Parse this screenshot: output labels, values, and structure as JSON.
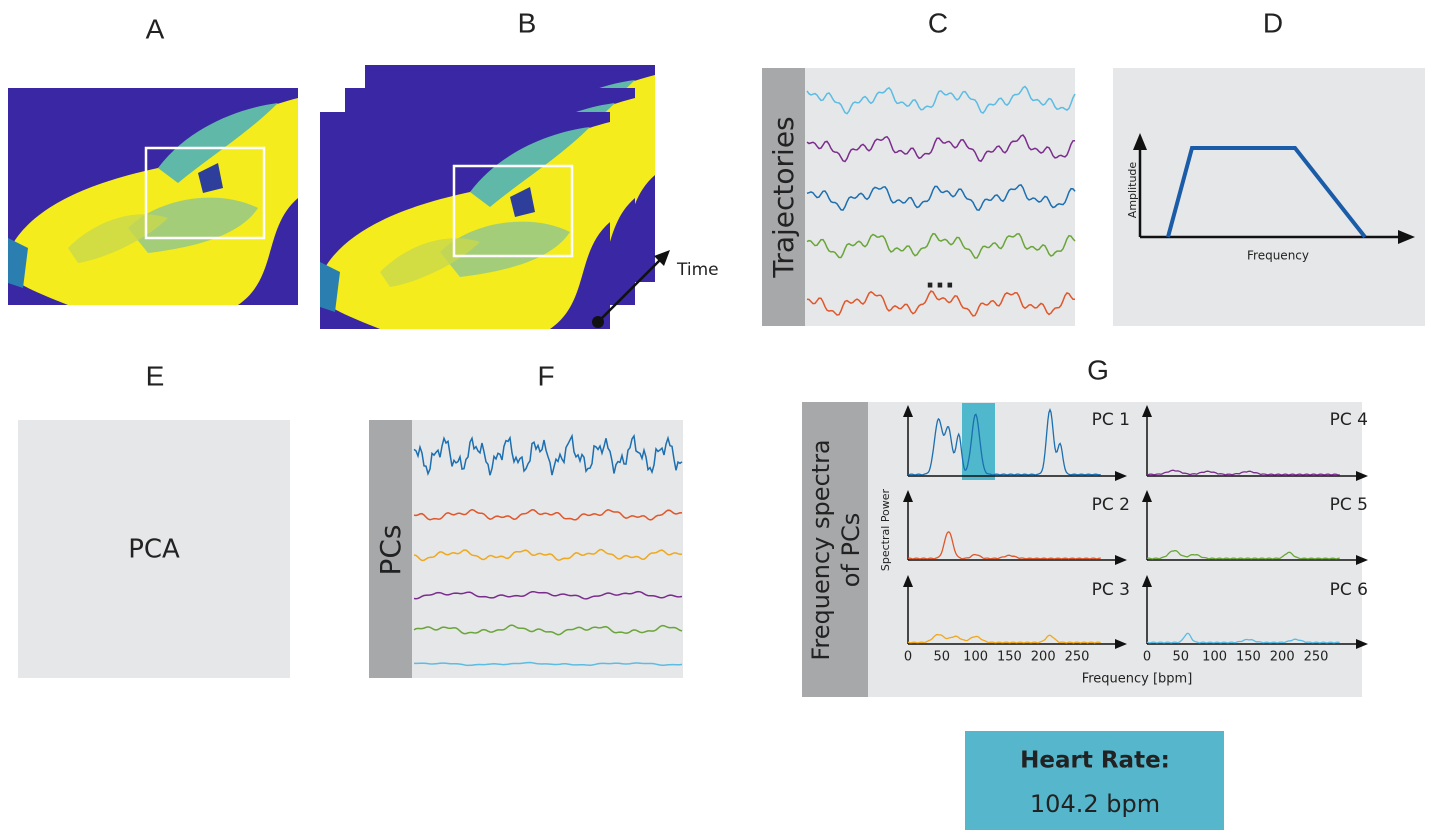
{
  "panels": {
    "A": {
      "label": "A"
    },
    "B": {
      "label": "B",
      "axis_label": "Time"
    },
    "C": {
      "label": "C",
      "title": "Trajectories",
      "ellipsis": "..."
    },
    "D": {
      "label": "D",
      "y_axis": "Amplitude",
      "x_axis": "Frequency"
    },
    "E": {
      "label": "E",
      "text": "PCA"
    },
    "F": {
      "label": "F",
      "title": "PCs"
    },
    "G": {
      "label": "G",
      "title_lines": [
        "Frequency spectra",
        "of PCs"
      ],
      "subplots": [
        "PC 1",
        "PC 2",
        "PC 3",
        "PC 4",
        "PC 5",
        "PC 6"
      ],
      "y_axis": "Spectral Power",
      "x_ticks": [
        "0",
        "50",
        "100",
        "150",
        "200",
        "250"
      ],
      "x_axis": "Frequency [bpm]"
    }
  },
  "result": {
    "title": "Heart Rate:",
    "value": "104.2 bpm"
  }
}
